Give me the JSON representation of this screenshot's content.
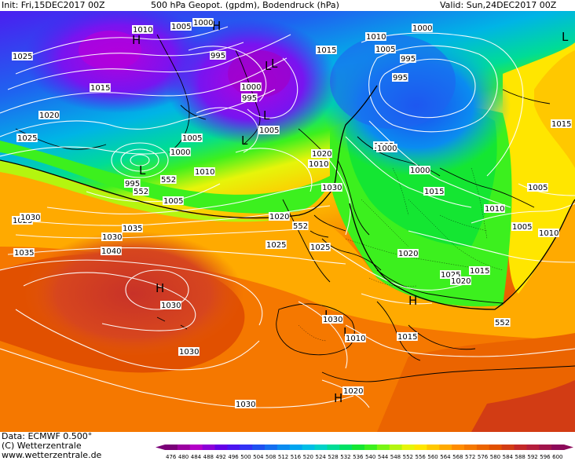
{
  "header": {
    "init": "Init: Fri,15DEC2017 00Z",
    "title": "500 hPa Geopot. (gpdm), Bodendruck (hPa)",
    "valid": "Valid: Sun,24DEC2017 00Z"
  },
  "footer": {
    "data_source": "Data: ECMWF   0.500°",
    "copyright": "(C) Wetterzentrale",
    "url": "www.wetterzentrale.de"
  },
  "scale": {
    "values": [
      "476",
      "480",
      "484",
      "488",
      "492",
      "496",
      "500",
      "504",
      "508",
      "512",
      "516",
      "520",
      "524",
      "528",
      "532",
      "536",
      "540",
      "544",
      "548",
      "552",
      "556",
      "560",
      "564",
      "568",
      "572",
      "576",
      "580",
      "584",
      "588",
      "592",
      "596",
      "600"
    ],
    "colors": [
      "#7a0078",
      "#9b00a0",
      "#b400c8",
      "#8c00d7",
      "#6400e6",
      "#4b14f0",
      "#3232f5",
      "#1e50f0",
      "#146ef0",
      "#0a8cf0",
      "#00a5f0",
      "#00bee6",
      "#00d2c8",
      "#00dc96",
      "#00e164",
      "#14e632",
      "#3cf01e",
      "#78f514",
      "#b4f50f",
      "#e6f50a",
      "#ffe600",
      "#ffc800",
      "#ffaa00",
      "#ff8c00",
      "#f57800",
      "#eb6400",
      "#e15000",
      "#d23c14",
      "#c32828",
      "#b41e3c",
      "#a0144b",
      "#8c0a5a"
    ]
  },
  "map_labels": {
    "highs_lows": [
      "H",
      "L",
      "L",
      "L",
      "H",
      "L",
      "L",
      "H",
      "L",
      "L",
      "H",
      "L",
      "H"
    ],
    "isobars": [
      "1010",
      "1005",
      "1000",
      "995",
      "1025",
      "1015",
      "1020",
      "1025",
      "1005",
      "1000",
      "995",
      "1010",
      "1005",
      "1000",
      "995",
      "1015",
      "1010",
      "1005",
      "995",
      "1000",
      "1005",
      "1010",
      "1000",
      "1020",
      "1015",
      "1010",
      "1005",
      "1005",
      "1010",
      "1015",
      "1020",
      "1025",
      "1025",
      "1030",
      "1035",
      "1030",
      "1040",
      "1035",
      "1030",
      "1030",
      "1030",
      "1025",
      "1020",
      "1025",
      "1020",
      "1015",
      "1010",
      "1015",
      "1030",
      "1020",
      "1005",
      "995",
      "1000",
      "1030",
      "552",
      "552",
      "552",
      "552"
    ]
  }
}
